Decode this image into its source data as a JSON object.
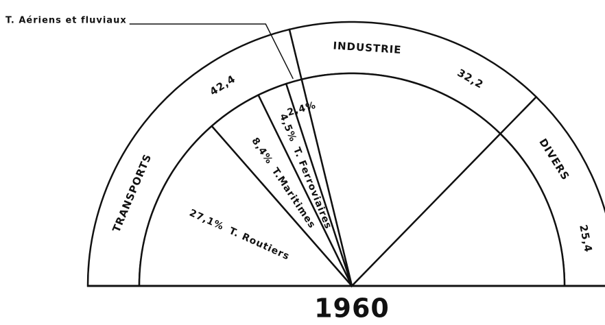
{
  "chart_data": {
    "type": "pie",
    "title": "1960",
    "outer": {
      "categories": [
        "TRANSPORTS",
        "INDUSTRIE",
        "DIVERS"
      ],
      "values": [
        42.4,
        32.2,
        25.4
      ],
      "value_labels": [
        "42,4",
        "32,2",
        "25,4"
      ]
    },
    "inner": {
      "categories": [
        "T. Routiers",
        "T.Maritimes",
        "T. Ferroviaires",
        "T. Aériens et fluviaux"
      ],
      "values": [
        27.1,
        8.4,
        4.5,
        2.4
      ],
      "value_labels": [
        "27,1%",
        "8,4%",
        "4,5%",
        "2,4%"
      ]
    }
  }
}
